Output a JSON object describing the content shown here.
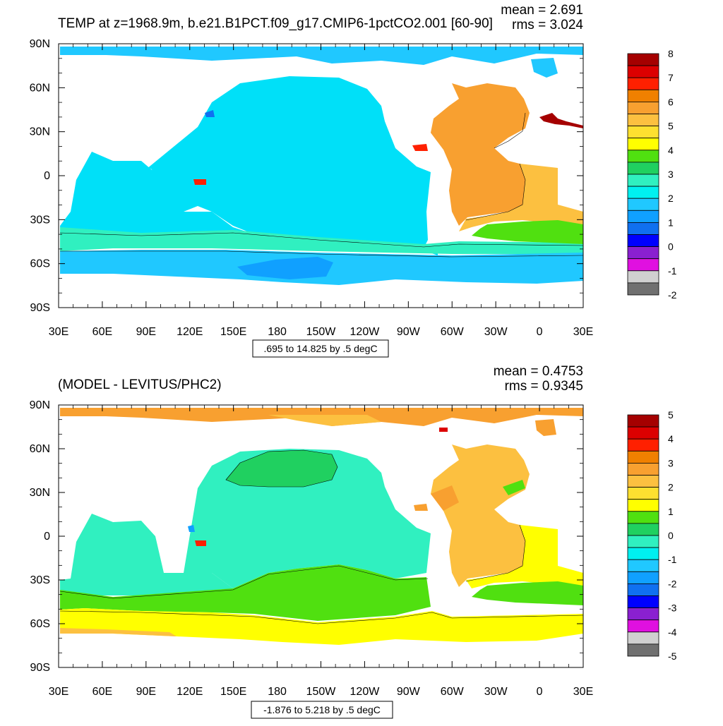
{
  "chart_data": [
    {
      "type": "heatmap",
      "panel": "top",
      "title": "TEMP at z=1968.9m, b.e21.B1PCT.f09_g17.CMIP6-1pctCO2.001 [60-90]",
      "stats": {
        "mean": "mean = 2.691",
        "rms": "rms = 3.024"
      },
      "contour_info": ".695 to 14.825 by .5 degC",
      "x_tick_labels": [
        "30E",
        "60E",
        "90E",
        "120E",
        "150E",
        "180",
        "150W",
        "120W",
        "90W",
        "60W",
        "30W",
        "0",
        "30E"
      ],
      "y_tick_labels": [
        "90N",
        "60N",
        "30N",
        "0",
        "30S",
        "60S",
        "90S"
      ],
      "x_range_deg": [
        30,
        390
      ],
      "y_range_deg": [
        -90,
        90
      ],
      "colorbar": {
        "labels": [
          "8",
          "7",
          "6",
          "5",
          "4",
          "3",
          "2",
          "1",
          "0",
          "-1",
          "-2"
        ],
        "colors": [
          "#a50000",
          "#dc0000",
          "#ff2000",
          "#f08000",
          "#f8a030",
          "#fcc040",
          "#fde030",
          "#ffff00",
          "#50e010",
          "#20d060",
          "#30f0c0",
          "#00f0f0",
          "#20c8ff",
          "#10a0ff",
          "#1070f0",
          "#0000ff",
          "#8a20d0",
          "#e010e0",
          "#d0d0d0",
          "#707070"
        ]
      },
      "regions": [
        {
          "name": "arctic",
          "value": 2.0,
          "color": "#20c8ff"
        },
        {
          "name": "pacific-indian",
          "value": 2.2,
          "color": "#00e0f8"
        },
        {
          "name": "southern-band",
          "value": 2.7,
          "color": "#30f0c0"
        },
        {
          "name": "antarctic",
          "value": 1.8,
          "color": "#20c8ff"
        },
        {
          "name": "north-atlantic",
          "value": 5.0,
          "color": "#f8a030"
        },
        {
          "name": "south-atlantic",
          "value": 4.5,
          "color": "#fcc040"
        },
        {
          "name": "south-atlantic-band",
          "value": 3.8,
          "color": "#50e010"
        }
      ]
    },
    {
      "type": "heatmap",
      "panel": "bottom",
      "title": "(MODEL - LEVITUS/PHC2)",
      "stats": {
        "mean": "mean = 0.4753",
        "rms": "rms = 0.9345"
      },
      "contour_info": "-1.876 to 5.218 by .5 degC",
      "x_tick_labels": [
        "30E",
        "60E",
        "90E",
        "120E",
        "150E",
        "180",
        "150W",
        "120W",
        "90W",
        "60W",
        "30W",
        "0",
        "30E"
      ],
      "y_tick_labels": [
        "90N",
        "60N",
        "30N",
        "0",
        "30S",
        "60S",
        "90S"
      ],
      "x_range_deg": [
        30,
        390
      ],
      "y_range_deg": [
        -90,
        90
      ],
      "colorbar": {
        "labels": [
          "5",
          "4",
          "3",
          "2",
          "1",
          "0",
          "-1",
          "-2",
          "-3",
          "-4",
          "-5"
        ],
        "colors": [
          "#a50000",
          "#dc0000",
          "#ff2000",
          "#f08000",
          "#f8a030",
          "#fcc040",
          "#fde030",
          "#ffff00",
          "#50e010",
          "#20d060",
          "#30f0c0",
          "#00f0f0",
          "#20c8ff",
          "#10a0ff",
          "#1070f0",
          "#0000ff",
          "#8a20d0",
          "#e010e0",
          "#d0d0d0",
          "#707070"
        ]
      },
      "regions": [
        {
          "name": "arctic",
          "value": 2.3,
          "color": "#f8a030"
        },
        {
          "name": "pacific-indian",
          "value": -0.5,
          "color": "#30f0c0"
        },
        {
          "name": "north-pacific",
          "value": 0.2,
          "color": "#20d060"
        },
        {
          "name": "south-pacific",
          "value": 0.3,
          "color": "#50e010"
        },
        {
          "name": "southern-band",
          "value": 1.0,
          "color": "#ffff00"
        },
        {
          "name": "north-atlantic",
          "value": 1.7,
          "color": "#fcc040"
        },
        {
          "name": "south-atlantic",
          "value": 1.6,
          "color": "#fcc040"
        }
      ]
    }
  ]
}
